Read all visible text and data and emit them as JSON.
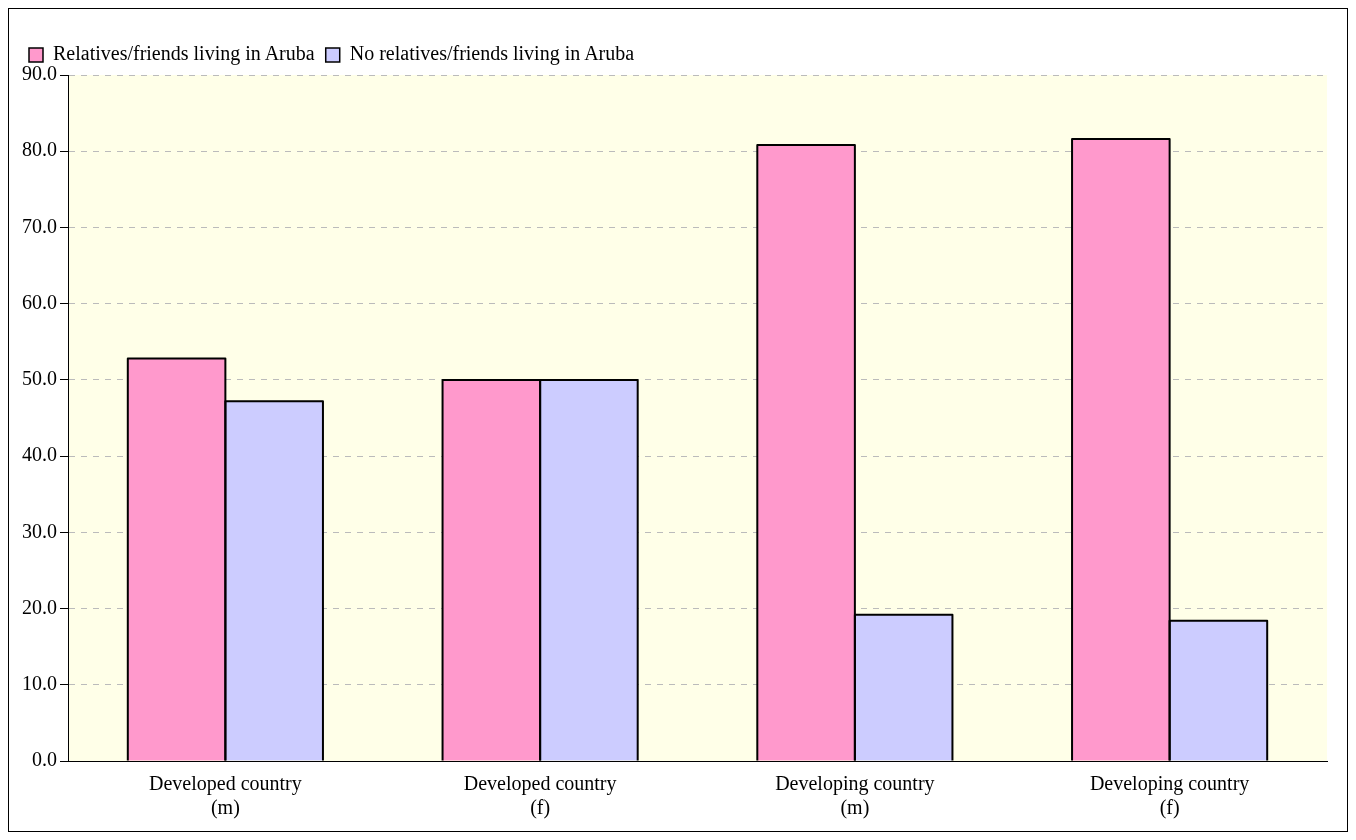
{
  "chart_data": {
    "type": "bar",
    "categories": [
      "Developed country (m)",
      "Developed country (f)",
      "Developing country (m)",
      "Developing country (f)"
    ],
    "series": [
      {
        "name": "Relatives/friends living in Aruba",
        "color": "#ff99cc",
        "values": [
          52.8,
          50.0,
          80.8,
          81.6
        ]
      },
      {
        "name": "No relatives/friends living in Aruba",
        "color": "#ccccff",
        "values": [
          47.2,
          50.0,
          19.2,
          18.4
        ]
      }
    ],
    "ylim": [
      0,
      90
    ],
    "yticks": [
      {
        "value": 0,
        "label": "0.0"
      },
      {
        "value": 10,
        "label": "10.0"
      },
      {
        "value": 20,
        "label": "20.0"
      },
      {
        "value": 30,
        "label": "30.0"
      },
      {
        "value": 40,
        "label": "40.0"
      },
      {
        "value": 50,
        "label": "50.0"
      },
      {
        "value": 60,
        "label": "60.0"
      },
      {
        "value": 70,
        "label": "70.0"
      },
      {
        "value": 80,
        "label": "80.0"
      },
      {
        "value": 90,
        "label": "90.0"
      }
    ],
    "grid": "y",
    "legend": "top left"
  }
}
